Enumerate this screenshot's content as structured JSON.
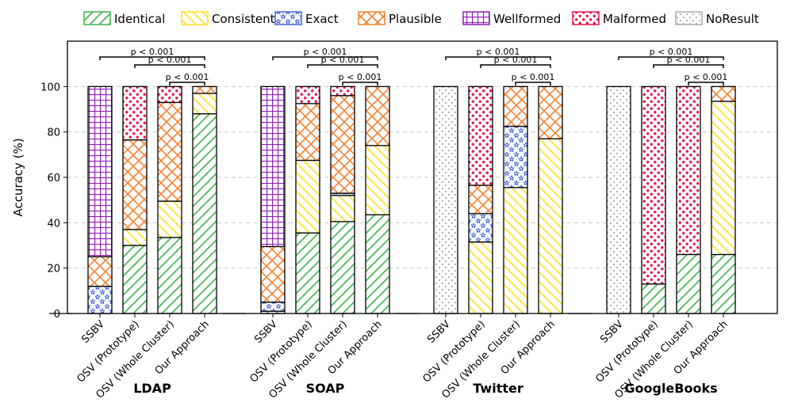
{
  "chart_data": {
    "type": "bar",
    "stacked": true,
    "ylabel": "Accuracy (%)",
    "ylim": [
      0,
      120
    ],
    "yticks": [
      0,
      20,
      40,
      60,
      80,
      100
    ],
    "grid": "horizontal dashed",
    "legend_position": "top",
    "legend": [
      {
        "key": "identical",
        "label": "Identical",
        "color": "#3cb44b",
        "pattern": "forward-diagonal"
      },
      {
        "key": "consistent",
        "label": "Consistent",
        "color": "#ffe119",
        "pattern": "back-diagonal"
      },
      {
        "key": "exact",
        "label": "Exact",
        "color": "#4363d8",
        "pattern": "stars"
      },
      {
        "key": "plausible",
        "label": "Plausible",
        "color": "#f58231",
        "pattern": "crosshatch-diagonal"
      },
      {
        "key": "wellformed",
        "label": "Wellformed",
        "color": "#911eb4",
        "pattern": "grid"
      },
      {
        "key": "malformed",
        "label": "Malformed",
        "color": "#e6194b",
        "pattern": "dots"
      },
      {
        "key": "noresult",
        "label": "NoResult",
        "color": "#a9a9a9",
        "pattern": "small-dots"
      }
    ],
    "bar_labels": [
      "SSBV",
      "OSV (Prototype)",
      "OSV (Whole Cluster)",
      "Our Approach"
    ],
    "groups": [
      {
        "name": "LDAP",
        "bars": [
          {
            "segments": [
              {
                "cat": "exact",
                "value": 12
              },
              {
                "cat": "plausible",
                "value": 13
              },
              {
                "cat": "wellformed",
                "value": 75
              }
            ]
          },
          {
            "segments": [
              {
                "cat": "identical",
                "value": 30
              },
              {
                "cat": "consistent",
                "value": 7
              },
              {
                "cat": "plausible",
                "value": 39.5
              },
              {
                "cat": "malformed",
                "value": 23.5
              }
            ]
          },
          {
            "segments": [
              {
                "cat": "identical",
                "value": 33.5
              },
              {
                "cat": "consistent",
                "value": 16
              },
              {
                "cat": "plausible",
                "value": 43.5
              },
              {
                "cat": "malformed",
                "value": 7
              }
            ]
          },
          {
            "segments": [
              {
                "cat": "identical",
                "value": 88
              },
              {
                "cat": "consistent",
                "value": 9
              },
              {
                "cat": "plausible",
                "value": 3
              }
            ]
          }
        ]
      },
      {
        "name": "SOAP",
        "bars": [
          {
            "segments": [
              {
                "cat": "identical",
                "value": 1
              },
              {
                "cat": "exact",
                "value": 4
              },
              {
                "cat": "plausible",
                "value": 24.5
              },
              {
                "cat": "wellformed",
                "value": 70.5
              }
            ]
          },
          {
            "segments": [
              {
                "cat": "identical",
                "value": 35.5
              },
              {
                "cat": "consistent",
                "value": 32
              },
              {
                "cat": "plausible",
                "value": 25
              },
              {
                "cat": "malformed",
                "value": 7.5
              }
            ]
          },
          {
            "segments": [
              {
                "cat": "identical",
                "value": 40.5
              },
              {
                "cat": "consistent",
                "value": 11.5
              },
              {
                "cat": "exact",
                "value": 1
              },
              {
                "cat": "plausible",
                "value": 43
              },
              {
                "cat": "malformed",
                "value": 4
              }
            ]
          },
          {
            "segments": [
              {
                "cat": "identical",
                "value": 43.5
              },
              {
                "cat": "consistent",
                "value": 30.5
              },
              {
                "cat": "plausible",
                "value": 26
              }
            ]
          }
        ]
      },
      {
        "name": "Twitter",
        "bars": [
          {
            "segments": [
              {
                "cat": "noresult",
                "value": 100
              }
            ]
          },
          {
            "segments": [
              {
                "cat": "consistent",
                "value": 31.5
              },
              {
                "cat": "exact",
                "value": 12.5
              },
              {
                "cat": "plausible",
                "value": 12.5
              },
              {
                "cat": "malformed",
                "value": 43.5
              }
            ]
          },
          {
            "segments": [
              {
                "cat": "consistent",
                "value": 55.5
              },
              {
                "cat": "exact",
                "value": 27
              },
              {
                "cat": "plausible",
                "value": 17.5
              }
            ]
          },
          {
            "segments": [
              {
                "cat": "consistent",
                "value": 77
              },
              {
                "cat": "plausible",
                "value": 23
              }
            ]
          }
        ]
      },
      {
        "name": "GoogleBooks",
        "bars": [
          {
            "segments": [
              {
                "cat": "noresult",
                "value": 100
              }
            ]
          },
          {
            "segments": [
              {
                "cat": "identical",
                "value": 13
              },
              {
                "cat": "malformed",
                "value": 87
              }
            ]
          },
          {
            "segments": [
              {
                "cat": "identical",
                "value": 26
              },
              {
                "cat": "malformed",
                "value": 74
              }
            ]
          },
          {
            "segments": [
              {
                "cat": "identical",
                "value": 26
              },
              {
                "cat": "consistent",
                "value": 67.5
              },
              {
                "cat": "plausible",
                "value": 6.5
              }
            ]
          }
        ]
      }
    ],
    "significance_annotations": [
      {
        "from_bar": 0,
        "to_bar": 3,
        "label": "p < 0.001"
      },
      {
        "from_bar": 1,
        "to_bar": 3,
        "label": "p < 0.001"
      },
      {
        "from_bar": 2,
        "to_bar": 3,
        "label": "p < 0.001"
      }
    ]
  }
}
